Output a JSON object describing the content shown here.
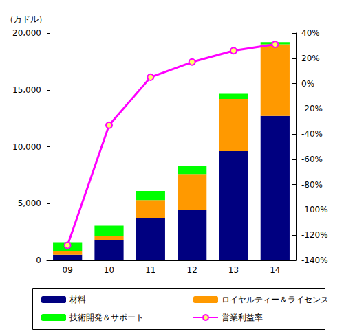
{
  "chart_data": {
    "type": "bar",
    "stacked": true,
    "grid": false,
    "legend": "bottom",
    "ylabel": "（万ドル）",
    "categories": [
      "09",
      "10",
      "11",
      "12",
      "13",
      "14"
    ],
    "ylim": [
      0,
      20000
    ],
    "yticks": [
      0,
      {
        "value": 5000,
        "label": "5,000"
      },
      {
        "value": 10000,
        "label": "10,000"
      },
      {
        "value": 15000,
        "label": "15,000"
      },
      {
        "value": 20000,
        "label": "20,000"
      }
    ],
    "y2lim": [
      -140,
      40
    ],
    "y2ticks": [
      {
        "value": -140,
        "label": "-140%"
      },
      {
        "value": -120,
        "label": "-120%"
      },
      {
        "value": -100,
        "label": "-100%"
      },
      {
        "value": -80,
        "label": "-80%"
      },
      {
        "value": -60,
        "label": "-60%"
      },
      {
        "value": -40,
        "label": "-40%"
      },
      {
        "value": -20,
        "label": "-20%"
      },
      {
        "value": 0,
        "label": "0%"
      },
      {
        "value": 20,
        "label": "20%"
      },
      {
        "value": 40,
        "label": "40%"
      }
    ],
    "series": [
      {
        "name": "材料",
        "color": "#000080",
        "values": [
          500,
          1750,
          3750,
          4450,
          9600,
          12700
        ]
      },
      {
        "name": "ロイヤルティー＆ライセンス",
        "color": "#ff9900",
        "values": [
          300,
          400,
          1550,
          3150,
          4600,
          6300
        ]
      },
      {
        "name": "技術開発＆サポート",
        "color": "#00ff00",
        "values": [
          800,
          900,
          800,
          700,
          450,
          200
        ]
      },
      {
        "name": "営業利益率",
        "type": "line",
        "axis": "y2",
        "marker": "circle",
        "color": "#ff00ff",
        "values": [
          -128,
          -33,
          5,
          17,
          26,
          31
        ]
      }
    ]
  }
}
